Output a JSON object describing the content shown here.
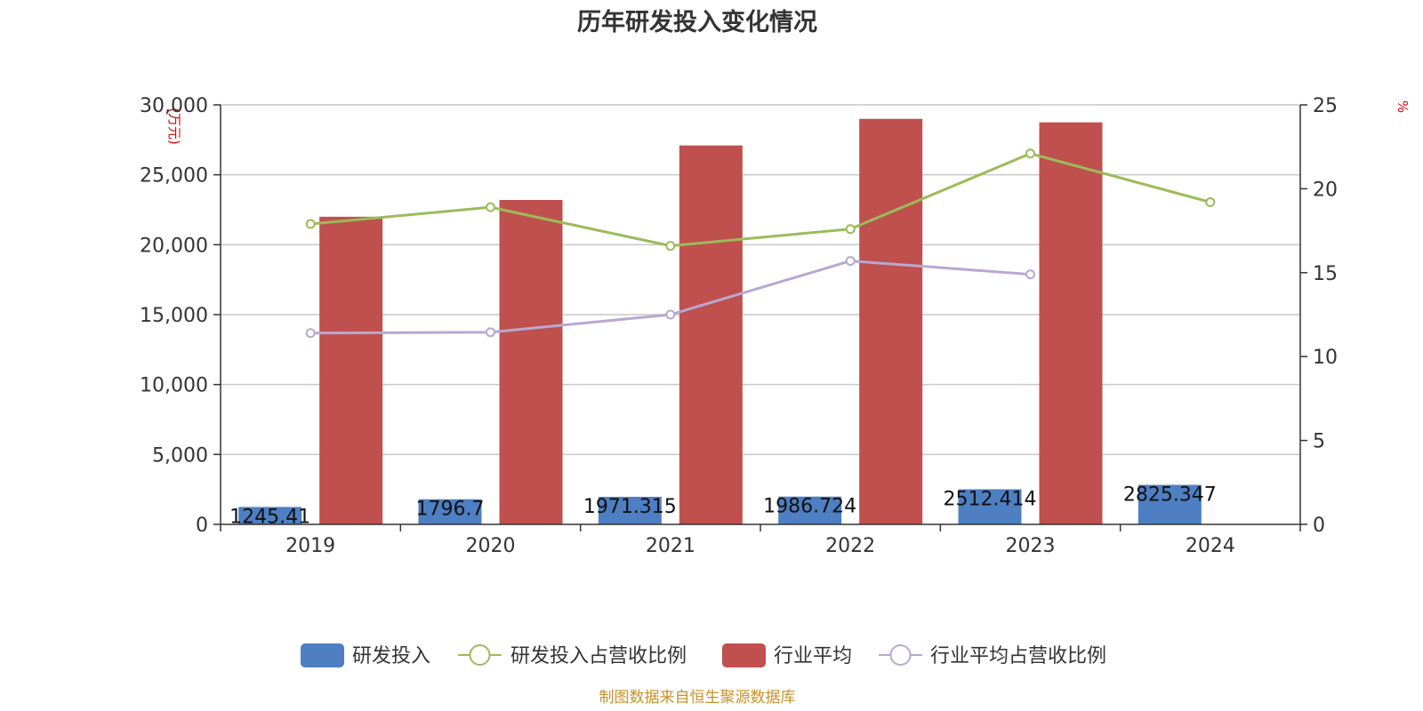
{
  "chart_data": {
    "type": "bar",
    "title": "历年研发投入变化情况",
    "categories": [
      "2019",
      "2020",
      "2021",
      "2022",
      "2023",
      "2024"
    ],
    "y_left": {
      "unit": "(万元)",
      "range": [
        0,
        30000
      ],
      "ticks": [
        "0",
        "5,000",
        "10,000",
        "15,000",
        "20,000",
        "25,000",
        "30,000"
      ]
    },
    "y_right": {
      "unit": "%",
      "range": [
        0,
        25
      ],
      "ticks": [
        "0",
        "5",
        "10",
        "15",
        "20",
        "25"
      ]
    },
    "grid": true,
    "legend_position": "bottom",
    "series": [
      {
        "name": "研发投入",
        "type": "bar",
        "axis": "left",
        "color": "#4d7fc2",
        "values": [
          1245.41,
          1796.7,
          1971.315,
          1986.724,
          2512.414,
          2825.347
        ],
        "labels": [
          "1245.41",
          "1796.7",
          "1971.315",
          "1986.724",
          "2512.414",
          "2825.347"
        ]
      },
      {
        "name": "研发投入占营收比例",
        "type": "line",
        "axis": "right",
        "color": "#9bbb59",
        "values": [
          17.9,
          18.9,
          16.6,
          17.6,
          22.1,
          19.2
        ]
      },
      {
        "name": "行业平均",
        "type": "bar",
        "axis": "left",
        "color": "#c0504d",
        "values": [
          22000,
          23200,
          27100,
          29000,
          28750,
          null
        ]
      },
      {
        "name": "行业平均占营收比例",
        "type": "line",
        "axis": "right",
        "color": "#b7a8d1",
        "values": [
          11.4,
          11.45,
          12.5,
          15.7,
          14.9,
          null
        ]
      }
    ],
    "source": "制图数据来自恒生聚源数据库"
  }
}
